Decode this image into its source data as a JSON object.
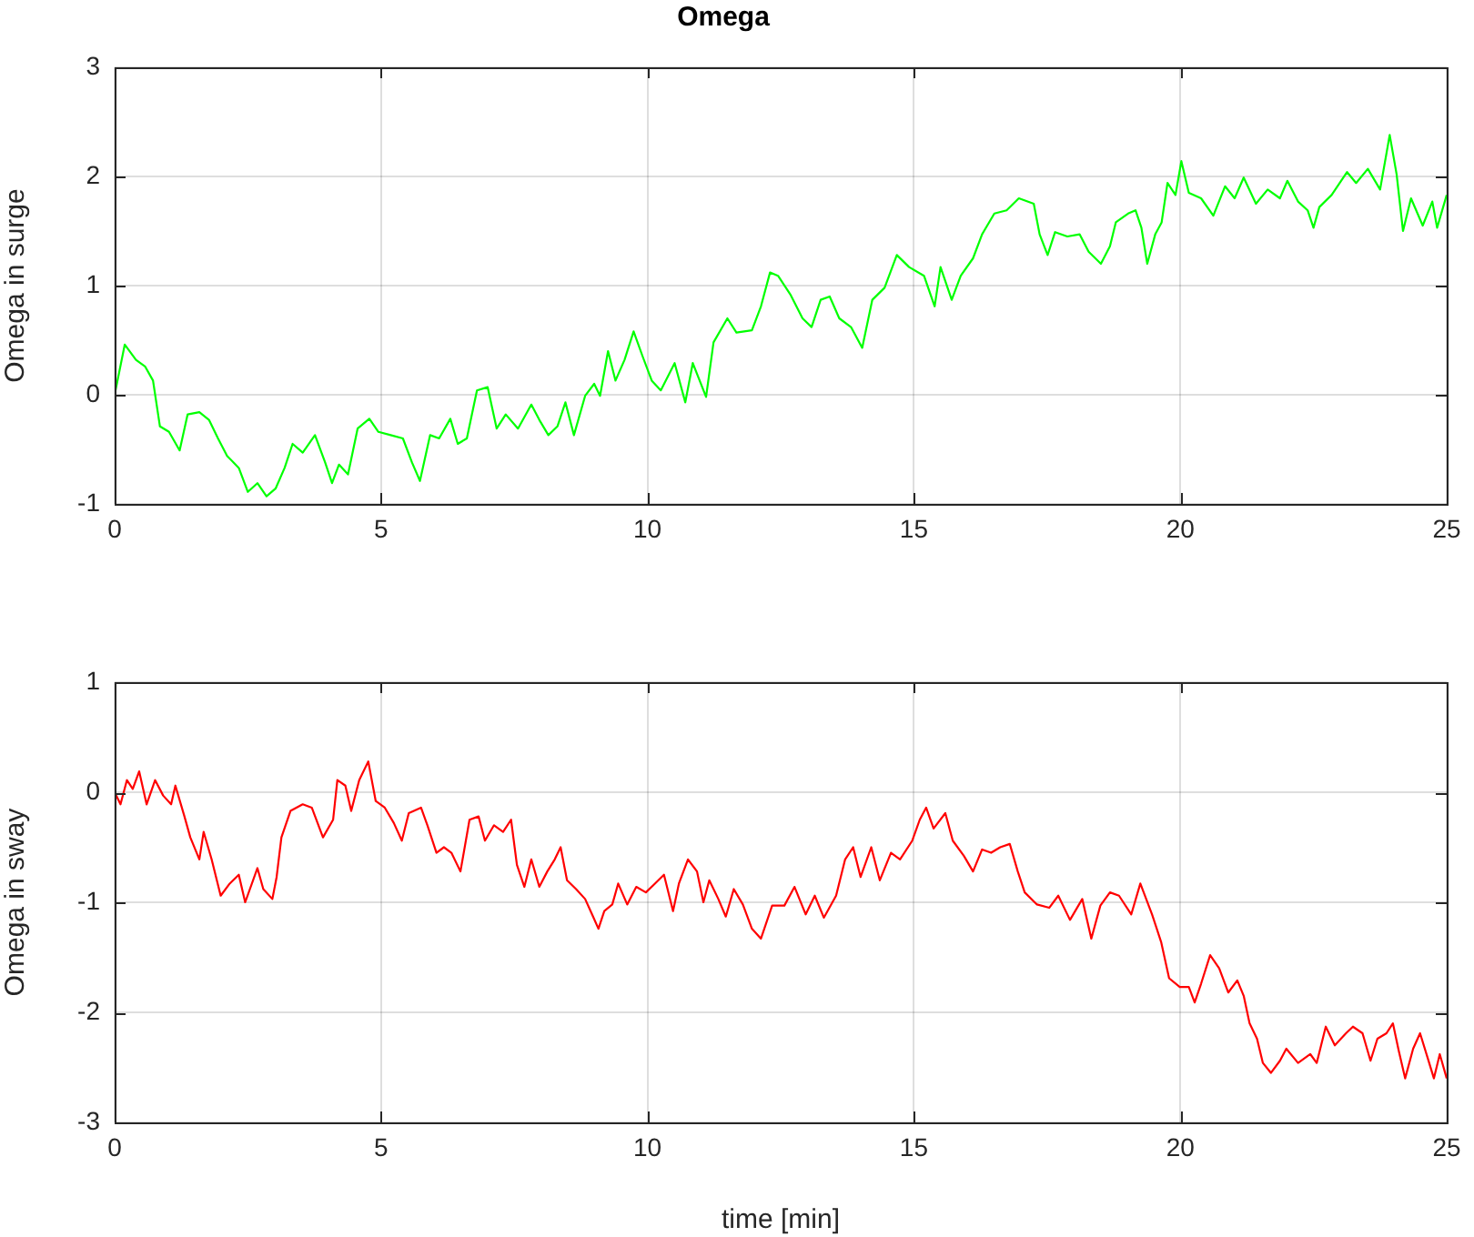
{
  "chart_data": [
    {
      "type": "line",
      "title": "Omega",
      "ylabel": "Omega in surge",
      "xlim": [
        0,
        25
      ],
      "xticks": [
        0,
        5,
        10,
        15,
        20,
        25
      ],
      "ylim": [
        -1,
        3
      ],
      "yticks": [
        -1,
        0,
        1,
        2,
        3
      ],
      "grid": true,
      "marker": "none",
      "line_style": "solid",
      "x": [
        0,
        0.19,
        0.4,
        0.57,
        0.72,
        0.85,
        1.02,
        1.22,
        1.37,
        1.59,
        1.77,
        1.94,
        2.11,
        2.33,
        2.5,
        2.68,
        2.85,
        3.02,
        3.19,
        3.34,
        3.53,
        3.76,
        3.95,
        4.08,
        4.21,
        4.38,
        4.56,
        4.78,
        4.95,
        5.18,
        5.41,
        5.58,
        5.73,
        5.92,
        6.09,
        6.3,
        6.44,
        6.61,
        6.8,
        7,
        7.17,
        7.34,
        7.57,
        7.82,
        7.97,
        8.14,
        8.31,
        8.46,
        8.62,
        8.83,
        9,
        9.11,
        9.26,
        9.4,
        9.57,
        9.74,
        9.91,
        10.08,
        10.25,
        10.51,
        10.71,
        10.85,
        11.1,
        11.24,
        11.5,
        11.67,
        11.96,
        12.13,
        12.3,
        12.45,
        12.68,
        12.91,
        13.08,
        13.25,
        13.42,
        13.6,
        13.82,
        14.03,
        14.22,
        14.45,
        14.68,
        14.91,
        15.19,
        15.39,
        15.5,
        15.71,
        15.88,
        16.11,
        16.28,
        16.51,
        16.74,
        16.97,
        17.25,
        17.36,
        17.51,
        17.65,
        17.88,
        18.11,
        18.28,
        18.51,
        18.68,
        18.79,
        19.02,
        19.16,
        19.27,
        19.38,
        19.53,
        19.65,
        19.76,
        19.91,
        20.02,
        20.16,
        20.39,
        20.62,
        20.84,
        21.02,
        21.19,
        21.42,
        21.64,
        21.87,
        22.01,
        22.21,
        22.39,
        22.5,
        22.61,
        22.84,
        23.13,
        23.3,
        23.52,
        23.75,
        23.93,
        24.06,
        24.18,
        24.33,
        24.55,
        24.73,
        24.82,
        25
      ],
      "series": [
        {
          "color": "#00ff00",
          "values": [
            0,
            0.46,
            0.32,
            0.26,
            0.13,
            -0.29,
            -0.34,
            -0.51,
            -0.18,
            -0.16,
            -0.23,
            -0.4,
            -0.56,
            -0.67,
            -0.89,
            -0.81,
            -0.93,
            -0.86,
            -0.67,
            -0.45,
            -0.53,
            -0.37,
            -0.62,
            -0.81,
            -0.64,
            -0.73,
            -0.31,
            -0.22,
            -0.34,
            -0.37,
            -0.4,
            -0.62,
            -0.79,
            -0.37,
            -0.4,
            -0.22,
            -0.45,
            -0.4,
            0.04,
            0.07,
            -0.31,
            -0.18,
            -0.31,
            -0.09,
            -0.23,
            -0.37,
            -0.29,
            -0.07,
            -0.37,
            -0.01,
            0.1,
            -0.01,
            0.4,
            0.13,
            0.32,
            0.58,
            0.35,
            0.13,
            0.04,
            0.29,
            -0.07,
            0.29,
            -0.02,
            0.48,
            0.7,
            0.57,
            0.59,
            0.81,
            1.12,
            1.09,
            0.92,
            0.7,
            0.62,
            0.87,
            0.9,
            0.7,
            0.62,
            0.43,
            0.87,
            0.98,
            1.28,
            1.17,
            1.09,
            0.81,
            1.17,
            0.87,
            1.09,
            1.25,
            1.47,
            1.66,
            1.69,
            1.8,
            1.75,
            1.47,
            1.28,
            1.49,
            1.45,
            1.47,
            1.31,
            1.2,
            1.36,
            1.58,
            1.66,
            1.69,
            1.53,
            1.2,
            1.47,
            1.58,
            1.94,
            1.83,
            2.14,
            1.85,
            1.8,
            1.64,
            1.91,
            1.8,
            1.99,
            1.75,
            1.88,
            1.8,
            1.96,
            1.77,
            1.69,
            1.53,
            1.72,
            1.83,
            2.04,
            1.94,
            2.07,
            1.88,
            2.38,
            2.02,
            1.5,
            1.8,
            1.55,
            1.77,
            1.53,
            1.83
          ]
        }
      ]
    },
    {
      "type": "line",
      "xlabel": "time [min]",
      "ylabel": "Omega in sway",
      "xlim": [
        0,
        25
      ],
      "xticks": [
        0,
        5,
        10,
        15,
        20,
        25
      ],
      "ylim": [
        -3,
        1
      ],
      "yticks": [
        -3,
        -2,
        -1,
        0,
        1
      ],
      "grid": true,
      "marker": "none",
      "line_style": "solid",
      "x": [
        0,
        0.11,
        0.23,
        0.34,
        0.46,
        0.6,
        0.76,
        0.91,
        1.06,
        1.14,
        1.31,
        1.42,
        1.59,
        1.67,
        1.82,
        1.99,
        2.16,
        2.33,
        2.45,
        2.68,
        2.79,
        2.96,
        3.04,
        3.13,
        3.3,
        3.53,
        3.7,
        3.91,
        4.1,
        4.18,
        4.33,
        4.44,
        4.59,
        4.76,
        4.9,
        5.07,
        5.24,
        5.39,
        5.52,
        5.75,
        5.87,
        6.04,
        6.18,
        6.32,
        6.49,
        6.66,
        6.83,
        6.95,
        7.12,
        7.29,
        7.44,
        7.55,
        7.69,
        7.82,
        7.97,
        8.12,
        8.26,
        8.37,
        8.49,
        8.66,
        8.83,
        8.96,
        9.08,
        9.19,
        9.34,
        9.45,
        9.62,
        9.79,
        9.97,
        10.14,
        10.31,
        10.48,
        10.59,
        10.76,
        10.93,
        11.05,
        11.16,
        11.33,
        11.47,
        11.62,
        11.79,
        11.96,
        12.13,
        12.34,
        12.57,
        12.76,
        12.97,
        13.14,
        13.31,
        13.54,
        13.71,
        13.86,
        14,
        14.2,
        14.36,
        14.57,
        14.74,
        14.97,
        15.11,
        15.23,
        15.37,
        15.59,
        15.73,
        15.94,
        16.11,
        16.28,
        16.45,
        16.62,
        16.8,
        16.95,
        17.08,
        17.31,
        17.54,
        17.71,
        17.93,
        18.16,
        18.33,
        18.5,
        18.68,
        18.85,
        19.08,
        19.25,
        19.47,
        19.64,
        19.79,
        19.99,
        20.16,
        20.27,
        20.39,
        20.56,
        20.73,
        20.9,
        21.07,
        21.19,
        21.3,
        21.44,
        21.55,
        21.7,
        21.87,
        21.99,
        22.21,
        22.44,
        22.56,
        22.73,
        22.9,
        23.11,
        23.24,
        23.42,
        23.57,
        23.7,
        23.87,
        23.99,
        24.1,
        24.22,
        24.37,
        24.5,
        24.64,
        24.76,
        24.87,
        25
      ],
      "series": [
        {
          "color": "#ff0000",
          "values": [
            0,
            -0.11,
            0.11,
            0.03,
            0.19,
            -0.11,
            0.11,
            -0.03,
            -0.11,
            0.06,
            -0.22,
            -0.41,
            -0.61,
            -0.36,
            -0.61,
            -0.94,
            -0.83,
            -0.75,
            -1,
            -0.69,
            -0.88,
            -0.97,
            -0.77,
            -0.41,
            -0.17,
            -0.11,
            -0.14,
            -0.41,
            -0.25,
            0.11,
            0.06,
            -0.17,
            0.11,
            0.28,
            -0.08,
            -0.14,
            -0.28,
            -0.44,
            -0.19,
            -0.14,
            -0.3,
            -0.55,
            -0.5,
            -0.55,
            -0.72,
            -0.25,
            -0.22,
            -0.44,
            -0.3,
            -0.36,
            -0.25,
            -0.66,
            -0.86,
            -0.61,
            -0.86,
            -0.72,
            -0.61,
            -0.5,
            -0.8,
            -0.88,
            -0.97,
            -1.11,
            -1.24,
            -1.08,
            -1.02,
            -0.83,
            -1.02,
            -0.86,
            -0.91,
            -0.83,
            -0.75,
            -1.08,
            -0.83,
            -0.61,
            -0.72,
            -1,
            -0.8,
            -0.97,
            -1.13,
            -0.88,
            -1.02,
            -1.24,
            -1.33,
            -1.03,
            -1.03,
            -0.86,
            -1.11,
            -0.94,
            -1.14,
            -0.94,
            -0.61,
            -0.5,
            -0.77,
            -0.5,
            -0.8,
            -0.55,
            -0.61,
            -0.44,
            -0.25,
            -0.14,
            -0.33,
            -0.19,
            -0.44,
            -0.58,
            -0.72,
            -0.52,
            -0.55,
            -0.5,
            -0.47,
            -0.72,
            -0.91,
            -1.02,
            -1.05,
            -0.94,
            -1.16,
            -0.97,
            -1.33,
            -1.03,
            -0.91,
            -0.94,
            -1.11,
            -0.83,
            -1.11,
            -1.36,
            -1.69,
            -1.77,
            -1.77,
            -1.91,
            -1.74,
            -1.48,
            -1.6,
            -1.82,
            -1.71,
            -1.85,
            -2.1,
            -2.24,
            -2.46,
            -2.55,
            -2.44,
            -2.33,
            -2.46,
            -2.38,
            -2.46,
            -2.13,
            -2.3,
            -2.19,
            -2.13,
            -2.19,
            -2.44,
            -2.24,
            -2.19,
            -2.1,
            -2.35,
            -2.6,
            -2.33,
            -2.19,
            -2.41,
            -2.6,
            -2.38,
            -2.6
          ]
        }
      ]
    }
  ]
}
